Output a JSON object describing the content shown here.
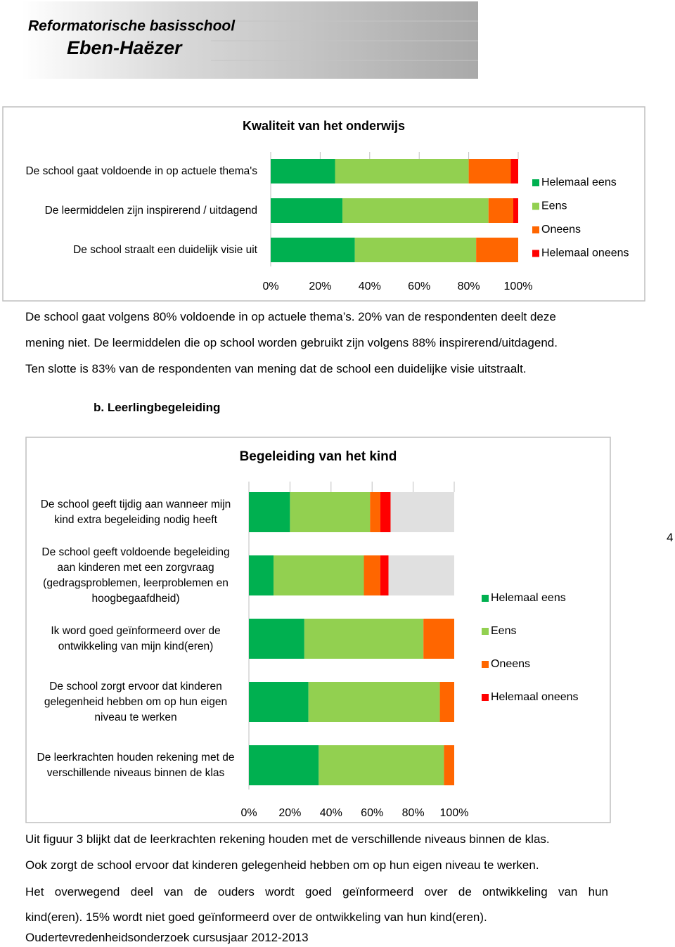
{
  "header": {
    "line1": "Reformatorische basisschool",
    "line2": "Eben-Haëzer"
  },
  "chart_data": [
    {
      "type": "bar",
      "orientation": "horizontal",
      "stacked": true,
      "title": "Kwaliteit van het onderwijs",
      "categories": [
        "De school gaat voldoende in op actuele thema's",
        "De leermiddelen zijn inspirerend / uitdagend",
        "De school straalt een duidelijk visie uit"
      ],
      "series": [
        {
          "name": "Helemaal eens",
          "color": "#00b050",
          "values": [
            26,
            29,
            34
          ]
        },
        {
          "name": "Eens",
          "color": "#92d050",
          "values": [
            54,
            59,
            49
          ]
        },
        {
          "name": "Oneens",
          "color": "#ff6600",
          "values": [
            17,
            10,
            17
          ]
        },
        {
          "name": "Helemaal oneens",
          "color": "#ff0000",
          "values": [
            3,
            2,
            0
          ]
        }
      ],
      "xlim": [
        0,
        100
      ],
      "xticks": [
        {
          "value": 0,
          "label": "0%"
        },
        {
          "value": 20,
          "label": "20%"
        },
        {
          "value": 40,
          "label": "40%"
        },
        {
          "value": 60,
          "label": "60%"
        },
        {
          "value": 80,
          "label": "80%"
        },
        {
          "value": 100,
          "label": "100%"
        }
      ],
      "legend": "right"
    },
    {
      "type": "bar",
      "orientation": "horizontal",
      "stacked": true,
      "title": "Begeleiding van het kind",
      "categories": [
        "De school geeft tijdig aan wanneer mijn kind extra begeleiding nodig heeft",
        "De school geeft voldoende begeleiding aan kinderen met een zorgvraag (gedragsproblemen, leerproblemen en hoogbegaafdheid)",
        "Ik word goed geïnformeerd over de ontwikkeling van mijn kind(eren)",
        "De school zorgt ervoor dat kinderen gelegenheid hebben om op hun eigen niveau te werken",
        "De leerkrachten houden rekening met de verschillende niveaus binnen de klas"
      ],
      "series": [
        {
          "name": "Helemaal eens",
          "color": "#00b050",
          "values": [
            20,
            12,
            27,
            29,
            34
          ]
        },
        {
          "name": "Eens",
          "color": "#92d050",
          "values": [
            39,
            44,
            58,
            64,
            61
          ]
        },
        {
          "name": "Oneens",
          "color": "#ff6600",
          "values": [
            5,
            8,
            15,
            7,
            5
          ]
        },
        {
          "name": "Helemaal oneens",
          "color": "#ff0000",
          "values": [
            5,
            4,
            0,
            0,
            0
          ]
        },
        {
          "color": "#e0e0e0",
          "values": [
            31,
            32,
            0,
            0,
            0
          ]
        }
      ],
      "xlim": [
        0,
        100
      ],
      "xticks": [
        {
          "value": 0,
          "label": "0%"
        },
        {
          "value": 20,
          "label": "20%"
        },
        {
          "value": 40,
          "label": "40%"
        },
        {
          "value": 60,
          "label": "60%"
        },
        {
          "value": 80,
          "label": "80%"
        },
        {
          "value": 100,
          "label": "100%"
        }
      ],
      "legend": "right"
    }
  ],
  "text_block_1": [
    "De school gaat volgens 80% voldoende in op actuele thema’s. 20% van de respondenten deelt deze",
    "mening niet. De leermiddelen die op school worden gebruikt zijn volgens 88% inspirerend/uitdagend.",
    "Ten slotte is 83% van de respondenten van mening dat de school een duidelijke visie uitstraalt."
  ],
  "section_heading": "b.  Leerlingbegeleiding",
  "page_number": "4",
  "text_block_2": [
    "Uit figuur 3 blijkt dat de leerkrachten rekening houden met de verschillende niveaus binnen de klas.",
    "Ook zorgt de school ervoor dat kinderen gelegenheid hebben om op hun eigen niveau te werken.",
    "Het overwegend deel van de ouders wordt goed geïnformeerd over de ontwikkeling van hun",
    "kind(eren). 15% wordt niet goed geïnformeerd over de ontwikkeling van hun kind(eren)."
  ],
  "footer": "Oudertevredenheidsonderzoek cursusjaar 2012-2013"
}
